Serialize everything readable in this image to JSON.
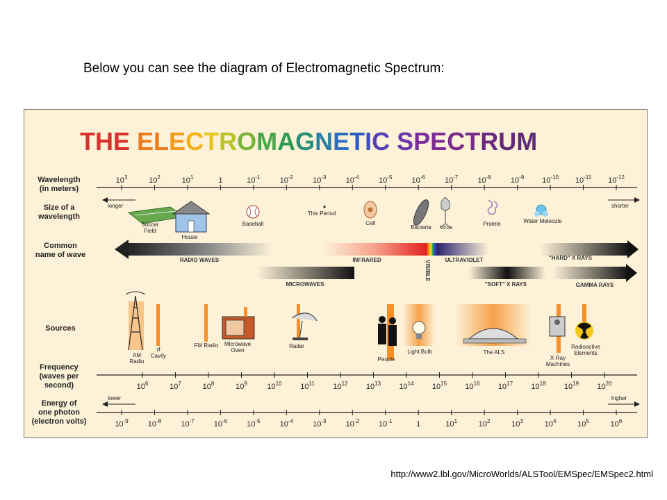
{
  "caption": "Below you can see the diagram of Electromagnetic Spectrum:",
  "url": "http://www2.lbl.gov/MicroWorlds/ALSTool/EMSpec/EMSpec2.html",
  "title": "THE ELECTROMAGNETIC SPECTRUM",
  "title_colors": [
    "#d8322c",
    "#d8322c",
    "#d8322c",
    "#ee7b1b",
    "#ee7b1b",
    "#f39a1a",
    "#f3b21a",
    "#e8c51d",
    "#b9c62a",
    "#7ab43a",
    "#4aa64a",
    "#2f9a55",
    "#2a8e78",
    "#2b7fa0",
    "#2d6ec2",
    "#2e5cc5",
    "#3b4fc0",
    "#5241b3",
    "#6a37a8",
    "#7a2f9e",
    "#7f2c96",
    "#7a2c8d",
    "#732b86",
    "#6a2a7f",
    "#642a7a",
    "#5e2a75",
    "#582a72",
    "#522a6f"
  ],
  "rows": {
    "wavelength": "Wavelength\n(in meters)",
    "size": "Size of a\nwavelength",
    "common": "Common\nname of wave",
    "sources": "Sources",
    "frequency": "Frequency\n(waves per\nsecond)",
    "energy": "Energy of\none photon\n(electron volts)"
  },
  "wavelength_ticks": [
    {
      "base": "10",
      "exp": "3"
    },
    {
      "base": "10",
      "exp": "2"
    },
    {
      "base": "10",
      "exp": "1"
    },
    {
      "base": "1",
      "exp": ""
    },
    {
      "base": "10",
      "exp": "-1"
    },
    {
      "base": "10",
      "exp": "-2"
    },
    {
      "base": "10",
      "exp": "-3"
    },
    {
      "base": "10",
      "exp": "-4"
    },
    {
      "base": "10",
      "exp": "-5"
    },
    {
      "base": "10",
      "exp": "-6"
    },
    {
      "base": "10",
      "exp": "-7"
    },
    {
      "base": "10",
      "exp": "-8"
    },
    {
      "base": "10",
      "exp": "-9"
    },
    {
      "base": "10",
      "exp": "-10"
    },
    {
      "base": "10",
      "exp": "-11"
    },
    {
      "base": "10",
      "exp": "-12"
    }
  ],
  "longer": "longer",
  "shorter": "shorter",
  "size_items": [
    "Soccer\nField",
    "House",
    "Baseball",
    "This Period",
    "Cell",
    "Bacteria",
    "Virus",
    "Protein",
    "Water Molecule"
  ],
  "waves": {
    "radio": "RADIO WAVES",
    "infrared": "INFRARED",
    "visible": "VISIBLE",
    "ultraviolet": "ULTRAVIOLET",
    "hard_xrays": "\"HARD\" X RAYS",
    "microwaves": "MICROWAVES",
    "soft_xrays": "\"SOFT\" X RAYS",
    "gamma": "GAMMA RAYS"
  },
  "sources": [
    "AM\nRadio",
    "rf\nCavity",
    "FM Radio",
    "Microwave\nOven",
    "Radar",
    "People",
    "Light Bulb",
    "The ALS",
    "X-Ray\nMachines",
    "Radioactive\nElements"
  ],
  "frequency_ticks": [
    {
      "base": "10",
      "exp": "6"
    },
    {
      "base": "10",
      "exp": "7"
    },
    {
      "base": "10",
      "exp": "8"
    },
    {
      "base": "10",
      "exp": "9"
    },
    {
      "base": "10",
      "exp": "10"
    },
    {
      "base": "10",
      "exp": "11"
    },
    {
      "base": "10",
      "exp": "12"
    },
    {
      "base": "10",
      "exp": "13"
    },
    {
      "base": "10",
      "exp": "14"
    },
    {
      "base": "10",
      "exp": "15"
    },
    {
      "base": "10",
      "exp": "16"
    },
    {
      "base": "10",
      "exp": "17"
    },
    {
      "base": "10",
      "exp": "18"
    },
    {
      "base": "10",
      "exp": "19"
    },
    {
      "base": "10",
      "exp": "20"
    }
  ],
  "lower": "lower",
  "higher": "higher",
  "energy_ticks": [
    {
      "base": "10",
      "exp": "-9"
    },
    {
      "base": "10",
      "exp": "-8"
    },
    {
      "base": "10",
      "exp": "-7"
    },
    {
      "base": "10",
      "exp": "-6"
    },
    {
      "base": "10",
      "exp": "-5"
    },
    {
      "base": "10",
      "exp": "-4"
    },
    {
      "base": "10",
      "exp": "-3"
    },
    {
      "base": "10",
      "exp": "-2"
    },
    {
      "base": "10",
      "exp": "-1"
    },
    {
      "base": "1",
      "exp": ""
    },
    {
      "base": "10",
      "exp": "1"
    },
    {
      "base": "10",
      "exp": "2"
    },
    {
      "base": "10",
      "exp": "3"
    },
    {
      "base": "10",
      "exp": "4"
    },
    {
      "base": "10",
      "exp": "5"
    },
    {
      "base": "10",
      "exp": "6"
    }
  ]
}
